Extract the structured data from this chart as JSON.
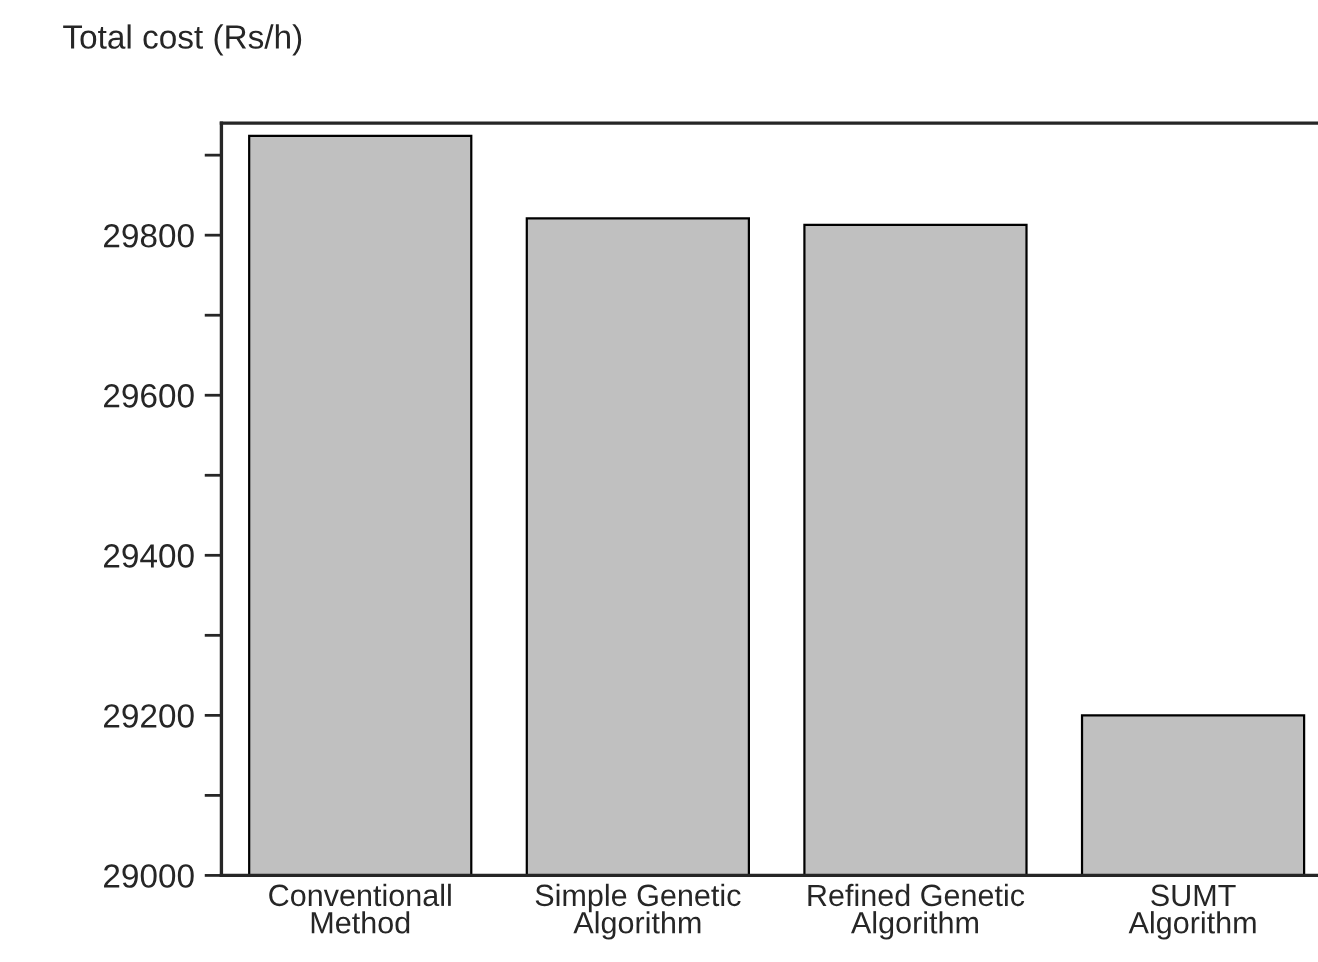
{
  "chart_data": {
    "type": "bar",
    "ylabel": "Total cost (Rs/h)",
    "categories": [
      "Conventionall\nMethod",
      "Simple Genetic\nAlgorithm",
      "Refined Genetic\nAlgorithm",
      "SUMT\nAlgorithm"
    ],
    "values": [
      29924,
      29821,
      29813,
      29200
    ],
    "color": "#c0c0c0",
    "ylim": [
      29000,
      29940
    ],
    "yticks": [
      29000,
      {
        "value": 29100,
        "label": null
      },
      29200,
      {
        "value": 29300,
        "label": null
      },
      29400,
      {
        "value": 29500,
        "label": null
      },
      29600,
      {
        "value": 29700,
        "label": null
      },
      29800,
      {
        "value": 29900,
        "label": null
      }
    ],
    "grid": false,
    "legend": false
  }
}
